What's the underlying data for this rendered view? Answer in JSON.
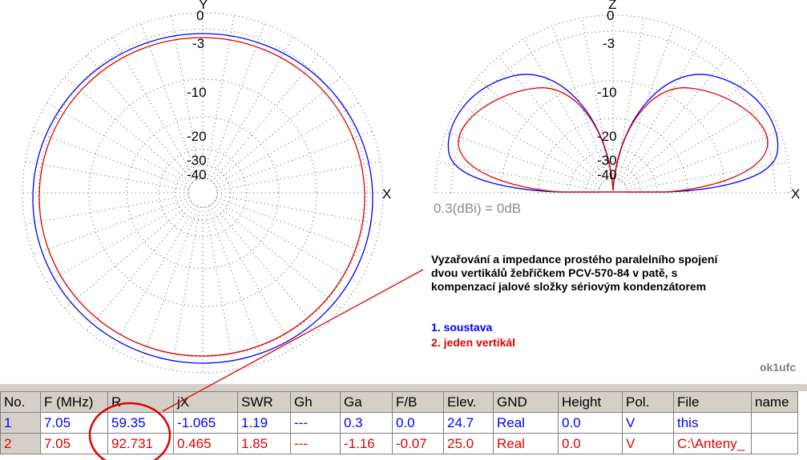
{
  "left_plot": {
    "axis_top": "Y",
    "axis_right": "X",
    "rings": [
      "0",
      "-3",
      "-10",
      "-20",
      "-30",
      "-40"
    ]
  },
  "right_plot": {
    "axis_top": "Z",
    "axis_right": "X",
    "rings": [
      "0",
      "-3",
      "-10",
      "-20",
      "-30",
      "-40"
    ]
  },
  "scale_note": "0.3(dBi) = 0dB",
  "description": "Vyzařování a impedance prostého paralelního spojení dvou vertikálů žebříčkem PCV-570-84 v patě, s kompenzací jalové složky sériovým kondenzátorem",
  "legend": {
    "item1": "1. soustava",
    "item2": "2. jeden vertikál"
  },
  "author": "ok1ufc",
  "colors": {
    "series1": "#0000ff",
    "series2": "#e00000",
    "header_bg": "#d4d0c8"
  },
  "table": {
    "headers": [
      "No.",
      "F (MHz)",
      "R",
      "jX",
      "SWR",
      "Gh",
      "Ga",
      "F/B",
      "Elev.",
      "GND",
      "Height",
      "Pol.",
      "File",
      "name"
    ],
    "rows": [
      [
        "1",
        "7.05",
        "59.35",
        "-1.065",
        "1.19",
        "---",
        "0.3",
        "0.0",
        "24.7",
        "Real",
        "0.0",
        "V",
        "this",
        ""
      ],
      [
        "2",
        "7.05",
        "92.731",
        "0.465",
        "1.85",
        "---",
        "-1.16",
        "-0.07",
        "25.0",
        "Real",
        "0.0",
        "V",
        "C:\\Anteny_",
        ""
      ]
    ]
  }
}
